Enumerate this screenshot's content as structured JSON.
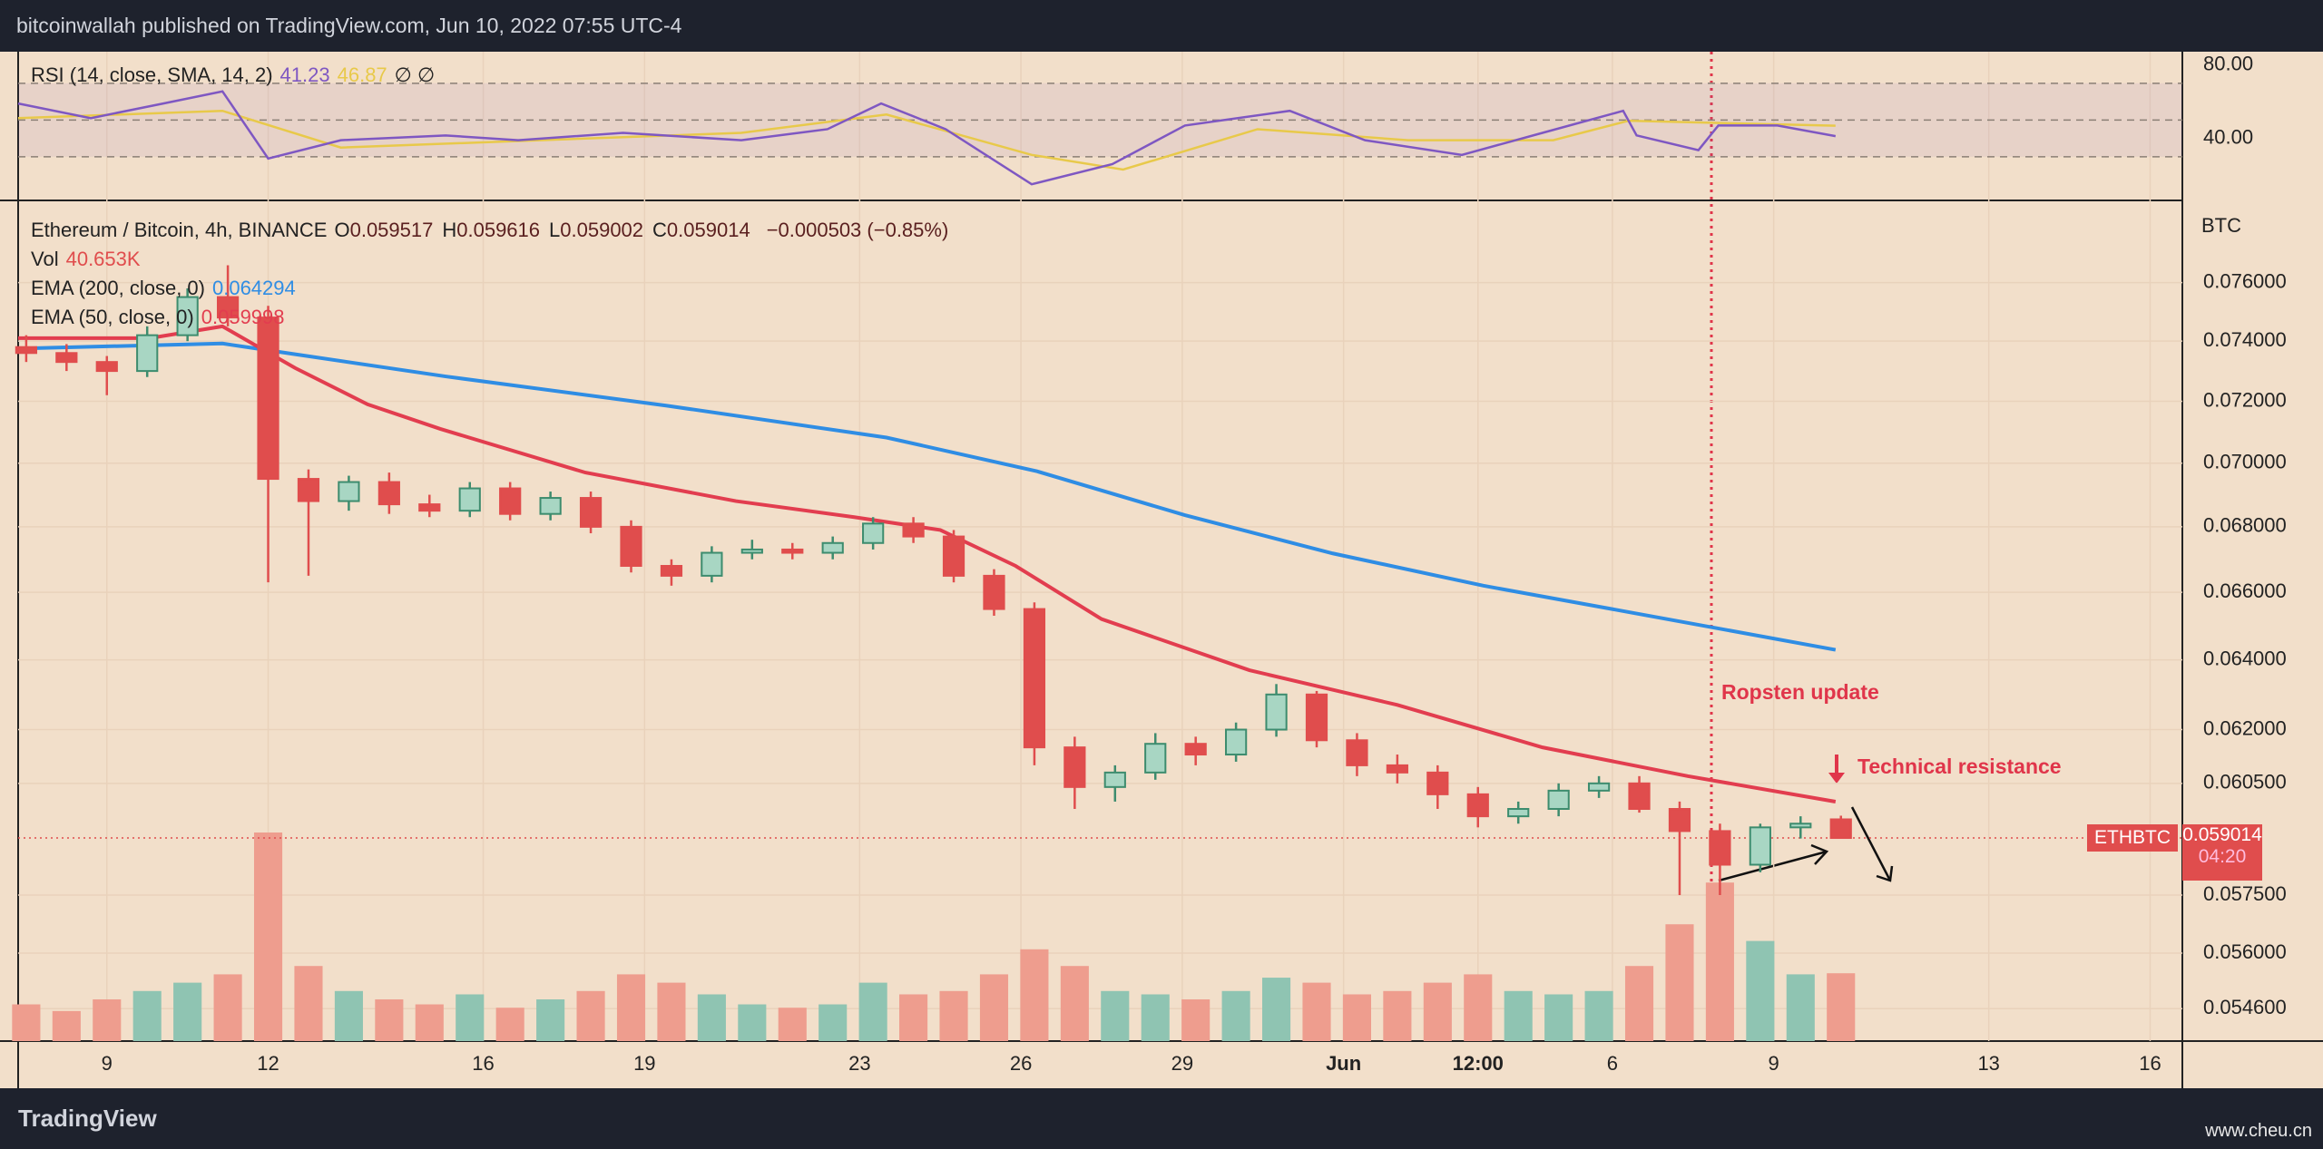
{
  "header": "bitcoinwallah published on TradingView.com, Jun 10, 2022 07:55 UTC-4",
  "footer": {
    "brand": "TradingView",
    "watermark": "www.cheu.cn"
  },
  "chart_data": [
    {
      "type": "candlestick",
      "title": "Ethereum / Bitcoin, 4h, BINANCE",
      "ohlc_legend": [
        {
          "label": "O",
          "value": 0.059517
        },
        {
          "label": "H",
          "value": 0.059616
        },
        {
          "label": "L",
          "value": 0.059002
        },
        {
          "label": "C",
          "value": 0.059014
        }
      ],
      "change": "−0.000503 (−0.85%)",
      "volume_legend": {
        "label": "Vol",
        "value": "40.653K"
      },
      "up_color": "#3d8c6e",
      "down_color": "#e04d4d",
      "volume_up_color": "#8fc4b2",
      "volume_down_color": "#ee9d8e",
      "x": [
        7.5,
        8.25,
        9,
        9.75,
        10.5,
        11.25,
        12,
        12.75,
        13.5,
        14.25,
        15,
        15.75,
        16.5,
        17.25,
        18,
        18.75,
        19.5,
        20.25,
        21,
        21.75,
        22.5,
        23.25,
        24,
        24.75,
        25.5,
        26.25,
        27,
        27.75,
        28.5,
        29.25,
        30,
        30.75,
        31.5,
        32.25,
        33,
        33.75,
        34.5,
        35.25,
        36,
        36.75,
        37.5,
        38.25,
        39,
        39.75,
        40.5,
        41.25
      ],
      "open": [
        0.0738,
        0.0736,
        0.0733,
        0.073,
        0.0742,
        0.0755,
        0.0748,
        0.0695,
        0.0688,
        0.0694,
        0.0687,
        0.0685,
        0.0692,
        0.0684,
        0.0689,
        0.068,
        0.0668,
        0.0665,
        0.0672,
        0.0673,
        0.0672,
        0.0675,
        0.0681,
        0.0677,
        0.0665,
        0.0655,
        0.0615,
        0.0604,
        0.0608,
        0.0616,
        0.0613,
        0.062,
        0.063,
        0.0617,
        0.061,
        0.0608,
        0.0602,
        0.0596,
        0.0598,
        0.0603,
        0.0605,
        0.0598,
        0.0592,
        0.0583,
        0.0593,
        0.059517
      ],
      "high": [
        0.0742,
        0.0739,
        0.0735,
        0.0745,
        0.0758,
        0.0766,
        0.0752,
        0.0698,
        0.0696,
        0.0697,
        0.069,
        0.0694,
        0.0694,
        0.0691,
        0.0691,
        0.0682,
        0.067,
        0.0674,
        0.0676,
        0.0675,
        0.0677,
        0.0683,
        0.0683,
        0.0679,
        0.0667,
        0.0657,
        0.0618,
        0.061,
        0.0619,
        0.0618,
        0.0622,
        0.0633,
        0.0631,
        0.0619,
        0.0613,
        0.061,
        0.0604,
        0.06,
        0.0605,
        0.0607,
        0.0607,
        0.06,
        0.0594,
        0.0594,
        0.0596,
        0.059616
      ],
      "low": [
        0.0733,
        0.073,
        0.0722,
        0.0728,
        0.074,
        0.0745,
        0.0663,
        0.0665,
        0.0685,
        0.0684,
        0.0683,
        0.0683,
        0.0682,
        0.0682,
        0.0678,
        0.0666,
        0.0662,
        0.0663,
        0.067,
        0.067,
        0.067,
        0.0673,
        0.0675,
        0.0663,
        0.0653,
        0.061,
        0.0598,
        0.06,
        0.0606,
        0.061,
        0.0611,
        0.0618,
        0.0615,
        0.0607,
        0.0605,
        0.0598,
        0.0593,
        0.0594,
        0.0596,
        0.0601,
        0.0597,
        0.0575,
        0.0575,
        0.0581,
        0.059,
        0.059002
      ],
      "close": [
        0.0736,
        0.0733,
        0.073,
        0.0742,
        0.0755,
        0.0748,
        0.0695,
        0.0688,
        0.0694,
        0.0687,
        0.0685,
        0.0692,
        0.0684,
        0.0689,
        0.068,
        0.0668,
        0.0665,
        0.0672,
        0.0673,
        0.0672,
        0.0675,
        0.0681,
        0.0677,
        0.0665,
        0.0655,
        0.0615,
        0.0604,
        0.0608,
        0.0616,
        0.0613,
        0.062,
        0.063,
        0.0617,
        0.061,
        0.0608,
        0.0602,
        0.0596,
        0.0598,
        0.0603,
        0.0605,
        0.0598,
        0.0592,
        0.0583,
        0.0593,
        0.0594,
        0.059014
      ],
      "volume": [
        22,
        18,
        25,
        30,
        35,
        40,
        125,
        45,
        30,
        25,
        22,
        28,
        20,
        25,
        30,
        40,
        35,
        28,
        22,
        20,
        22,
        35,
        28,
        30,
        40,
        55,
        45,
        30,
        28,
        25,
        30,
        38,
        35,
        28,
        30,
        35,
        40,
        30,
        28,
        30,
        45,
        70,
        95,
        60,
        40,
        40.653
      ],
      "series": [
        {
          "name": "EMA (200, close, 0)",
          "legend_value": 0.064294,
          "color": "#2f8de4",
          "x": [
            7.35,
            11.15,
            12.5,
            15.3,
            19.4,
            23.5,
            26.3,
            29.05,
            31.8,
            34.6,
            37.3,
            41.15
          ],
          "values": [
            0.07375,
            0.07392,
            0.07356,
            0.07282,
            0.07186,
            0.07082,
            0.06974,
            0.06836,
            0.06718,
            0.0662,
            0.06541,
            0.064294
          ]
        },
        {
          "name": "EMA (50, close, 0)",
          "legend_value": 0.059998,
          "color": "#e23d4f",
          "x": [
            7.35,
            9.8,
            11.15,
            12.5,
            13.85,
            15.2,
            17.9,
            20.7,
            22.9,
            24.5,
            25.9,
            27.5,
            30.25,
            33,
            35.7,
            38.4,
            41.15
          ],
          "values": [
            0.0741,
            0.0741,
            0.0745,
            0.0731,
            0.0719,
            0.0711,
            0.0697,
            0.0688,
            0.0683,
            0.0679,
            0.0668,
            0.0652,
            0.0637,
            0.0627,
            0.0615,
            0.0607,
            0.059998
          ]
        }
      ],
      "log_scale": true,
      "grid": true,
      "y_unit": "BTC",
      "ylim": [
        0.0538,
        0.0788
      ],
      "yticks": [
        {
          "value": 0.076,
          "label": "0.076000"
        },
        {
          "value": 0.074,
          "label": "0.074000"
        },
        {
          "value": 0.072,
          "label": "0.072000"
        },
        {
          "value": 0.07,
          "label": "0.070000"
        },
        {
          "value": 0.068,
          "label": "0.068000"
        },
        {
          "value": 0.066,
          "label": "0.066000"
        },
        {
          "value": 0.064,
          "label": "0.064000"
        },
        {
          "value": 0.062,
          "label": "0.062000"
        },
        {
          "value": 0.0605,
          "label": "0.060500"
        },
        {
          "value": 0.0575,
          "label": "0.057500"
        },
        {
          "value": 0.056,
          "label": "0.056000"
        },
        {
          "value": 0.0546,
          "label": "0.054600"
        }
      ],
      "xlim": [
        7.35,
        47.6
      ],
      "xticks": [
        9,
        12,
        16,
        19,
        23,
        26,
        29,
        {
          "value": 32,
          "label": "Jun"
        },
        {
          "value": 34.5,
          "label": "12:00"
        },
        {
          "value": 37,
          "label": "6"
        },
        {
          "value": 40,
          "label": "9"
        },
        {
          "value": 44,
          "label": "13"
        },
        {
          "value": 47,
          "label": "16"
        }
      ],
      "price_tag": {
        "symbol": "ETHBTC",
        "value": 0.059014,
        "countdown": "04:20"
      },
      "annotations": [
        "Ropsten update",
        "Technical resistance"
      ]
    },
    {
      "type": "line",
      "title": "RSI (14, close, SMA, 14, 2)",
      "extra": "∅ ∅",
      "ylim": [
        7.2,
        87.2
      ],
      "yticks": [
        {
          "value": 80,
          "label": "80.00"
        },
        {
          "value": 40,
          "label": "40.00"
        }
      ],
      "levels": [
        70,
        50,
        30
      ],
      "xlim": [
        7.35,
        47.6
      ],
      "series": [
        {
          "legend_value": 41.23,
          "color": "#7e57c2",
          "x": [
            7.35,
            8.7,
            10.05,
            11.15,
            12,
            13.35,
            15.3,
            16.65,
            18.6,
            20.8,
            22.4,
            23.4,
            24.6,
            26.2,
            27.7,
            29.05,
            31,
            32.4,
            34.2,
            35.7,
            37.2,
            37.45,
            38.6,
            38.97,
            40.07,
            41.15
          ],
          "values": [
            59,
            51,
            59,
            65.6,
            29,
            39,
            41.6,
            39,
            43,
            39,
            45,
            59,
            45,
            15,
            26,
            47,
            55,
            39,
            31,
            43,
            55,
            41.6,
            33.6,
            47,
            47,
            41.23
          ]
        },
        {
          "legend_value": 46.87,
          "color": "#e8c94a",
          "x": [
            7.35,
            11.15,
            13.35,
            20.8,
            23.5,
            26.2,
            27.9,
            30.4,
            33.2,
            35.9,
            37.3,
            41.15
          ],
          "values": [
            51,
            55,
            35,
            43,
            53,
            31,
            23,
            45,
            39,
            39,
            49.6,
            46.87
          ]
        }
      ]
    }
  ]
}
